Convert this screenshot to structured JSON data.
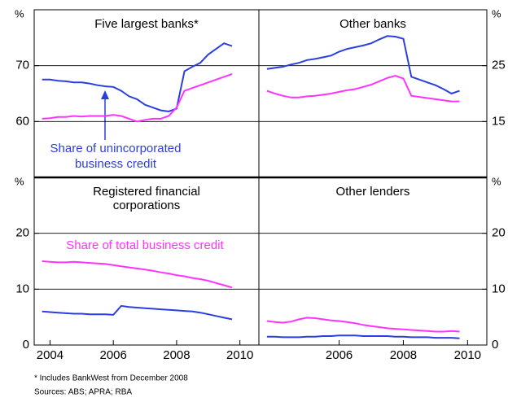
{
  "chart_data": [
    {
      "type": "line",
      "title": [
        "Five largest banks*"
      ],
      "ylabel": "%",
      "axis_side": "left",
      "xlim": [
        2003.5,
        2010.6
      ],
      "ylim": [
        50,
        80
      ],
      "yticks": [
        60,
        70
      ],
      "grid": true,
      "x": [
        2003.75,
        2004,
        2004.25,
        2004.5,
        2004.75,
        2005,
        2005.25,
        2005.5,
        2005.75,
        2006,
        2006.25,
        2006.5,
        2006.75,
        2007,
        2007.25,
        2007.5,
        2007.75,
        2008,
        2008.25,
        2008.5,
        2008.75,
        2009,
        2009.25,
        2009.5,
        2009.75
      ],
      "series": [
        {
          "color": "#2b3fe0",
          "values": [
            67.5,
            67.5,
            67.3,
            67.2,
            67,
            67,
            66.8,
            66.5,
            66.3,
            66.2,
            65.5,
            64.5,
            64,
            63,
            62.5,
            62,
            61.8,
            62.3,
            69,
            69.8,
            70.5,
            72,
            73,
            74,
            73.5
          ]
        },
        {
          "color": "#ff33ff",
          "values": [
            60.5,
            60.6,
            60.8,
            60.8,
            61,
            60.9,
            61,
            61,
            61,
            61.2,
            61,
            60.5,
            60,
            60.3,
            60.5,
            60.5,
            61,
            62.5,
            65.5,
            66,
            66.5,
            67,
            67.5,
            68,
            68.5
          ]
        }
      ],
      "annotations": [
        {
          "text": [
            "Share of unincorporated",
            "business credit"
          ],
          "color": "#2b3fe0"
        }
      ]
    },
    {
      "type": "line",
      "title": [
        "Other banks"
      ],
      "ylabel": "%",
      "axis_side": "right",
      "xlim": [
        2003.5,
        2010.6
      ],
      "ylim": [
        5,
        35
      ],
      "yticks": [
        15,
        25
      ],
      "grid": true,
      "x": [
        2003.75,
        2004,
        2004.25,
        2004.5,
        2004.75,
        2005,
        2005.25,
        2005.5,
        2005.75,
        2006,
        2006.25,
        2006.5,
        2006.75,
        2007,
        2007.25,
        2007.5,
        2007.75,
        2008,
        2008.25,
        2008.5,
        2008.75,
        2009,
        2009.25,
        2009.5,
        2009.75
      ],
      "series": [
        {
          "color": "#2b3fe0",
          "values": [
            24.4,
            24.6,
            24.8,
            25.2,
            25.5,
            26,
            26.2,
            26.5,
            26.8,
            27.5,
            28,
            28.3,
            28.6,
            29,
            29.7,
            30.3,
            30.2,
            29.8,
            23,
            22.5,
            22,
            21.5,
            20.8,
            20,
            20.5
          ]
        },
        {
          "color": "#ff33ff",
          "values": [
            20.5,
            20,
            19.6,
            19.3,
            19.3,
            19.5,
            19.6,
            19.8,
            20,
            20.3,
            20.6,
            20.8,
            21.2,
            21.6,
            22.2,
            22.8,
            23.2,
            22.7,
            19.6,
            19.4,
            19.2,
            19,
            18.8,
            18.6,
            18.6
          ]
        }
      ]
    },
    {
      "type": "line",
      "title": [
        "Registered financial",
        "corporations"
      ],
      "ylabel": "%",
      "axis_side": "left",
      "xlim": [
        2003.5,
        2010.6
      ],
      "xticks": [
        2004,
        2006,
        2008,
        2010
      ],
      "ylim": [
        0,
        30
      ],
      "yticks": [
        0,
        10,
        20
      ],
      "grid": true,
      "x": [
        2003.75,
        2004,
        2004.25,
        2004.5,
        2004.75,
        2005,
        2005.25,
        2005.5,
        2005.75,
        2006,
        2006.25,
        2006.5,
        2006.75,
        2007,
        2007.25,
        2007.5,
        2007.75,
        2008,
        2008.25,
        2008.5,
        2008.75,
        2009,
        2009.25,
        2009.5,
        2009.75
      ],
      "series": [
        {
          "color": "#ff33ff",
          "values": [
            15,
            14.9,
            14.8,
            14.8,
            14.9,
            14.8,
            14.7,
            14.6,
            14.5,
            14.3,
            14.1,
            13.9,
            13.7,
            13.5,
            13.3,
            13,
            12.8,
            12.5,
            12.3,
            12,
            11.8,
            11.5,
            11.1,
            10.7,
            10.3
          ]
        },
        {
          "color": "#2b3fe0",
          "values": [
            6,
            5.9,
            5.8,
            5.7,
            5.6,
            5.6,
            5.5,
            5.5,
            5.5,
            5.4,
            7,
            6.8,
            6.7,
            6.6,
            6.5,
            6.4,
            6.3,
            6.2,
            6.1,
            6,
            5.8,
            5.5,
            5.2,
            4.9,
            4.6
          ]
        }
      ],
      "annotations": [
        {
          "text": [
            "Share of total business credit"
          ],
          "color": "#ff33ff"
        }
      ]
    },
    {
      "type": "line",
      "title": [
        "Other lenders"
      ],
      "ylabel": "%",
      "axis_side": "right",
      "xlim": [
        2003.5,
        2010.6
      ],
      "xticks": [
        2006,
        2008,
        2010
      ],
      "ylim": [
        0,
        30
      ],
      "yticks": [
        0,
        10,
        20
      ],
      "grid": true,
      "x": [
        2003.75,
        2004,
        2004.25,
        2004.5,
        2004.75,
        2005,
        2005.25,
        2005.5,
        2005.75,
        2006,
        2006.25,
        2006.5,
        2006.75,
        2007,
        2007.25,
        2007.5,
        2007.75,
        2008,
        2008.25,
        2008.5,
        2008.75,
        2009,
        2009.25,
        2009.5,
        2009.75
      ],
      "series": [
        {
          "color": "#ff33ff",
          "values": [
            4.3,
            4.1,
            4,
            4.2,
            4.6,
            4.9,
            4.8,
            4.6,
            4.4,
            4.3,
            4.1,
            3.9,
            3.6,
            3.4,
            3.2,
            3,
            2.9,
            2.8,
            2.7,
            2.6,
            2.5,
            2.4,
            2.4,
            2.5,
            2.4
          ]
        },
        {
          "color": "#2b3fe0",
          "values": [
            1.5,
            1.5,
            1.4,
            1.4,
            1.4,
            1.5,
            1.5,
            1.6,
            1.6,
            1.7,
            1.7,
            1.7,
            1.6,
            1.6,
            1.6,
            1.6,
            1.5,
            1.5,
            1.4,
            1.4,
            1.4,
            1.3,
            1.3,
            1.3,
            1.2
          ]
        }
      ]
    }
  ],
  "notes": [
    "*   Includes BankWest from December 2008",
    "Sources: ABS; APRA; RBA"
  ]
}
